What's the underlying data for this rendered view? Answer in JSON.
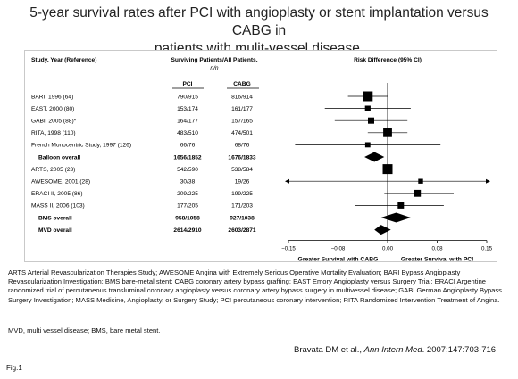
{
  "title_line1": "5-year survival rates after PCI with angioplasty or stent implantation versus CABG in",
  "title_line2": "patients with mulit-vessel disease.",
  "chart_data": {
    "type": "forest",
    "columns": {
      "study": "Study, Year (Reference)",
      "surviving": "Surviving Patients/All Patients,",
      "n": "n/n",
      "pci": "PCI",
      "cabg": "CABG",
      "risk": "Risk Difference (95% CI)"
    },
    "xlim": [
      -0.15,
      0.15
    ],
    "x_ticks": [
      "−0.15",
      "−0.08",
      "0.00",
      "0.08",
      "0.15"
    ],
    "x_tick_values": [
      -0.15,
      -0.075,
      0,
      0.075,
      0.15
    ],
    "favors_left": "Greater Survival with CABG",
    "favors_right": "Greater Survival with PCI",
    "rows": [
      {
        "label": "BARI, 1996 (64)",
        "pci": "790/915",
        "cabg": "816/914",
        "rd": -0.03,
        "lo": -0.06,
        "hi": 0.0,
        "kind": "study",
        "size": 1.0
      },
      {
        "label": "EAST, 2000 (80)",
        "pci": "153/174",
        "cabg": "161/177",
        "rd": -0.03,
        "lo": -0.095,
        "hi": 0.035,
        "kind": "study",
        "size": 0.4
      },
      {
        "label": "GABI, 2005 (88)*",
        "pci": "164/177",
        "cabg": "157/165",
        "rd": -0.025,
        "lo": -0.08,
        "hi": 0.03,
        "kind": "study",
        "size": 0.5
      },
      {
        "label": "RITA, 1998 (110)",
        "pci": "483/510",
        "cabg": "474/501",
        "rd": 0.0,
        "lo": -0.03,
        "hi": 0.03,
        "kind": "study",
        "size": 0.85
      },
      {
        "label": "French Monocentric Study, 1997 (126)",
        "pci": "66/76",
        "cabg": "68/76",
        "rd": -0.03,
        "lo": -0.14,
        "hi": 0.08,
        "kind": "study",
        "size": 0.35
      },
      {
        "label": "Balloon overall",
        "pci": "1656/1852",
        "cabg": "1676/1833",
        "rd": -0.02,
        "lo": -0.035,
        "hi": -0.005,
        "kind": "overall"
      },
      {
        "label": "ARTS, 2005 (23)",
        "pci": "542/590",
        "cabg": "538/584",
        "rd": 0.0,
        "lo": -0.035,
        "hi": 0.035,
        "kind": "study",
        "size": 1.0
      },
      {
        "label": "AWESOME, 2001 (28)",
        "pci": "30/38",
        "cabg": "19/26",
        "rd": 0.05,
        "lo": -0.15,
        "hi": 0.15,
        "kind": "study",
        "size": 0.3,
        "arrow_left": true,
        "arrow_right": true
      },
      {
        "label": "ERACI II, 2005 (86)",
        "pci": "209/225",
        "cabg": "199/225",
        "rd": 0.045,
        "lo": -0.005,
        "hi": 0.1,
        "kind": "study",
        "size": 0.6
      },
      {
        "label": "MASS II, 2006 (103)",
        "pci": "177/205",
        "cabg": "171/203",
        "rd": 0.02,
        "lo": -0.05,
        "hi": 0.085,
        "kind": "study",
        "size": 0.5
      },
      {
        "label": "BMS overall",
        "pci": "958/1058",
        "cabg": "927/1038",
        "rd": 0.013,
        "lo": -0.01,
        "hi": 0.035,
        "kind": "overall"
      },
      {
        "label": "MVD overall",
        "pci": "2614/2910",
        "cabg": "2603/2871",
        "rd": -0.01,
        "lo": -0.02,
        "hi": 0.005,
        "kind": "overall"
      }
    ]
  },
  "footnote_abbrev": "ARTS  Arterial Revascularization Therapies Study; AWESOME  Angina with Extremely Serious Operative Mortality Evaluation; BARI  Bypass Angioplasty Revascularization Investigation; BMS  bare-metal stent; CABG  coronary artery bypass grafting; EAST  Emory Angioplasty versus Surgery Trial; ERACI  Argentine randomized trial of percutaneous transluminal coronary angioplasty versus coronary artery bypass surgery in multivessel disease; GABI  German Angioplasty Bypass Surgery Investigation; MASS  Medicine, Angioplasty, or Surgery Study; PCI  percutaneous coronary intervention; RITA  Randomized Intervention Treatment of Angina.",
  "footnote_mvd": "MVD, multi vessel disease; BMS, bare metal stent.",
  "citation_pre": "Bravata DM et al., ",
  "citation_journal": "Ann Intern Med",
  "citation_post": ". 2007;147:703-716",
  "fig_label": "Fig.1",
  "colors": {
    "marker": "#000000",
    "grid": "#000000",
    "text": "#000000"
  }
}
